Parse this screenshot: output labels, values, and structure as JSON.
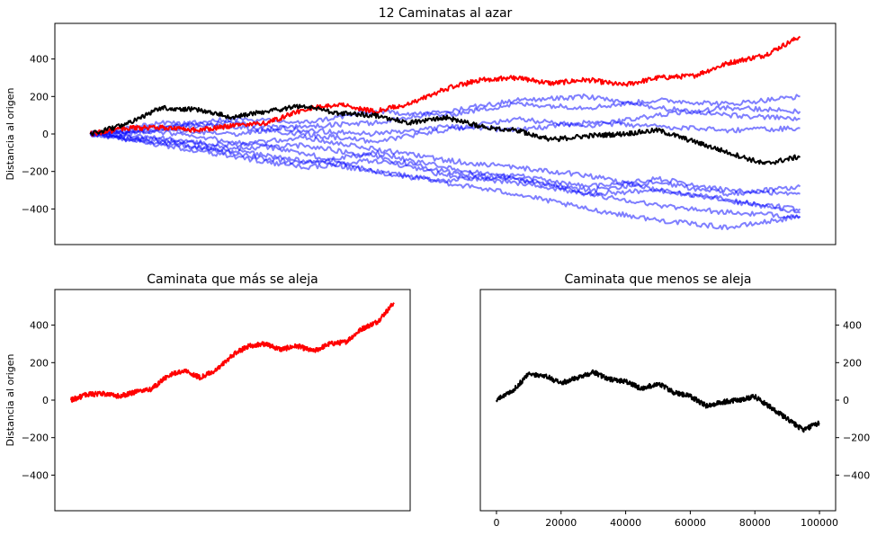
{
  "chart_data": [
    {
      "type": "line",
      "title": "12 Caminatas al azar",
      "ylabel": "Distancia al origen",
      "xlabel": "",
      "ylim": [
        -590,
        590
      ],
      "xlim": [
        -5000,
        105000
      ],
      "yticks": [
        -400,
        -200,
        0,
        200,
        400
      ],
      "xticks_visible": false,
      "y_axis_side": "left",
      "series": [
        {
          "color": "#ff0000",
          "opacity": 1.0,
          "x": [
            0,
            5000,
            10000,
            15000,
            20000,
            25000,
            30000,
            35000,
            40000,
            45000,
            50000,
            55000,
            60000,
            65000,
            70000,
            75000,
            80000,
            85000,
            90000,
            95000,
            100000
          ],
          "values": [
            0,
            30,
            35,
            20,
            45,
            60,
            130,
            160,
            120,
            160,
            240,
            290,
            300,
            270,
            290,
            260,
            300,
            310,
            380,
            420,
            520
          ]
        },
        {
          "color": "#000000",
          "opacity": 1.0,
          "x": [
            0,
            5000,
            10000,
            15000,
            20000,
            25000,
            30000,
            35000,
            40000,
            45000,
            50000,
            55000,
            60000,
            65000,
            70000,
            75000,
            80000,
            85000,
            90000,
            95000,
            100000
          ],
          "values": [
            0,
            50,
            140,
            130,
            90,
            120,
            150,
            110,
            100,
            60,
            90,
            40,
            20,
            -30,
            -10,
            0,
            20,
            -40,
            -100,
            -160,
            -120
          ]
        },
        {
          "color": "#0000ff",
          "opacity": 0.5,
          "x": [
            0,
            10000,
            20000,
            30000,
            40000,
            50000,
            60000,
            70000,
            80000,
            90000,
            100000
          ],
          "values": [
            0,
            -60,
            -120,
            -180,
            -140,
            -220,
            -260,
            -320,
            -300,
            -350,
            -420
          ]
        },
        {
          "color": "#0000ff",
          "opacity": 0.5,
          "x": [
            0,
            10000,
            20000,
            30000,
            40000,
            50000,
            60000,
            70000,
            80000,
            90000,
            100000
          ],
          "values": [
            0,
            40,
            80,
            60,
            120,
            100,
            160,
            140,
            180,
            160,
            200
          ]
        },
        {
          "color": "#0000ff",
          "opacity": 0.5,
          "x": [
            0,
            10000,
            20000,
            30000,
            40000,
            50000,
            60000,
            70000,
            80000,
            90000,
            100000
          ],
          "values": [
            0,
            -20,
            -80,
            -60,
            -120,
            -200,
            -240,
            -300,
            -260,
            -320,
            -280
          ]
        },
        {
          "color": "#0000ff",
          "opacity": 0.5,
          "x": [
            0,
            10000,
            20000,
            30000,
            40000,
            50000,
            60000,
            70000,
            80000,
            90000,
            100000
          ],
          "values": [
            0,
            20,
            0,
            40,
            60,
            120,
            180,
            200,
            140,
            100,
            80
          ]
        },
        {
          "color": "#0000ff",
          "opacity": 0.5,
          "x": [
            0,
            10000,
            20000,
            30000,
            40000,
            50000,
            60000,
            70000,
            80000,
            90000,
            100000
          ],
          "values": [
            0,
            -40,
            -100,
            -160,
            -100,
            -180,
            -240,
            -320,
            -380,
            -420,
            -440
          ]
        },
        {
          "color": "#0000ff",
          "opacity": 0.5,
          "x": [
            0,
            10000,
            20000,
            30000,
            40000,
            50000,
            60000,
            70000,
            80000,
            90000,
            100000
          ],
          "values": [
            0,
            60,
            40,
            0,
            -40,
            20,
            80,
            40,
            100,
            140,
            120
          ]
        },
        {
          "color": "#0000ff",
          "opacity": 0.5,
          "x": [
            0,
            10000,
            20000,
            30000,
            40000,
            50000,
            60000,
            70000,
            80000,
            90000,
            100000
          ],
          "values": [
            0,
            -30,
            -60,
            -20,
            -80,
            -140,
            -180,
            -220,
            -300,
            -360,
            -400
          ]
        },
        {
          "color": "#0000ff",
          "opacity": 0.5,
          "x": [
            0,
            10000,
            20000,
            30000,
            40000,
            50000,
            60000,
            70000,
            80000,
            90000,
            100000
          ],
          "values": [
            0,
            10,
            -40,
            -100,
            -200,
            -260,
            -320,
            -400,
            -460,
            -500,
            -440
          ]
        },
        {
          "color": "#0000ff",
          "opacity": 0.5,
          "x": [
            0,
            10000,
            20000,
            30000,
            40000,
            50000,
            60000,
            70000,
            80000,
            90000,
            100000
          ],
          "values": [
            0,
            30,
            60,
            20,
            0,
            40,
            20,
            60,
            40,
            20,
            30
          ]
        },
        {
          "color": "#0000ff",
          "opacity": 0.5,
          "x": [
            0,
            10000,
            20000,
            30000,
            40000,
            50000,
            60000,
            70000,
            80000,
            90000,
            100000
          ],
          "values": [
            0,
            -50,
            -90,
            -140,
            -200,
            -250,
            -220,
            -280,
            -240,
            -300,
            -320
          ]
        }
      ]
    },
    {
      "type": "line",
      "title": "Caminata que más se aleja",
      "ylabel": "Distancia al origen",
      "xlabel": "",
      "ylim": [
        -590,
        590
      ],
      "xlim": [
        -5000,
        105000
      ],
      "yticks": [
        -400,
        -200,
        0,
        200,
        400
      ],
      "xticks_visible": false,
      "y_axis_side": "left",
      "series": [
        {
          "color": "#ff0000",
          "opacity": 1.0,
          "x": [
            0,
            5000,
            10000,
            15000,
            20000,
            25000,
            30000,
            35000,
            40000,
            45000,
            50000,
            55000,
            60000,
            65000,
            70000,
            75000,
            80000,
            85000,
            90000,
            95000,
            100000
          ],
          "values": [
            0,
            30,
            35,
            20,
            45,
            60,
            130,
            160,
            120,
            160,
            240,
            290,
            300,
            270,
            290,
            260,
            300,
            310,
            380,
            420,
            520
          ]
        }
      ]
    },
    {
      "type": "line",
      "title": "Caminata que menos se aleja",
      "ylabel": "",
      "xlabel": "",
      "ylim": [
        -590,
        590
      ],
      "xlim": [
        -5000,
        105000
      ],
      "yticks": [
        -400,
        -200,
        0,
        200,
        400
      ],
      "xticks": [
        0,
        20000,
        40000,
        60000,
        80000,
        100000
      ],
      "xticks_visible": true,
      "y_axis_side": "right",
      "series": [
        {
          "color": "#000000",
          "opacity": 1.0,
          "x": [
            0,
            5000,
            10000,
            15000,
            20000,
            25000,
            30000,
            35000,
            40000,
            45000,
            50000,
            55000,
            60000,
            65000,
            70000,
            75000,
            80000,
            85000,
            90000,
            95000,
            100000
          ],
          "values": [
            0,
            50,
            140,
            130,
            90,
            120,
            150,
            110,
            100,
            60,
            90,
            40,
            20,
            -30,
            -10,
            0,
            20,
            -40,
            -100,
            -160,
            -120
          ]
        }
      ]
    }
  ]
}
